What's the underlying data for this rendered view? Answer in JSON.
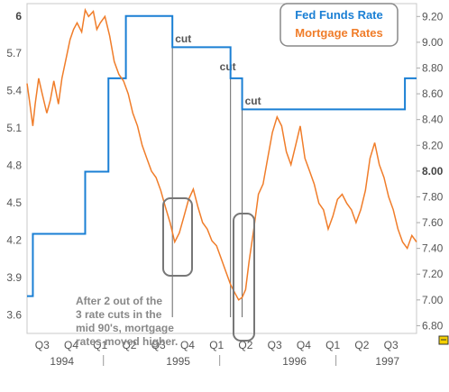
{
  "chart_data": {
    "type": "line",
    "legend": {
      "placement": "top-right",
      "entries": [
        {
          "label": "Fed Funds Rate",
          "color": "#1a7fd4"
        },
        {
          "label": "Mortgage Rates",
          "color": "#f07d2a"
        }
      ]
    },
    "x_axis": {
      "quarter_labels": [
        "Q3",
        "Q4",
        "Q1",
        "Q2",
        "Q3",
        "Q4",
        "Q1",
        "Q2",
        "Q3",
        "Q4",
        "Q1",
        "Q2",
        "Q3"
      ],
      "year_labels": [
        "1994",
        "1995",
        "1996",
        "1997"
      ]
    },
    "left_axis": {
      "ticks": [
        "6",
        "5.7",
        "5.4",
        "5.1",
        "4.8",
        "4.5",
        "4.2",
        "3.9",
        "3.6"
      ],
      "bold_ticks": [
        "6"
      ],
      "range": [
        3.45,
        6.1
      ]
    },
    "right_axis": {
      "ticks": [
        "9.20",
        "9.00",
        "8.80",
        "8.60",
        "8.40",
        "8.20",
        "8.00",
        "7.80",
        "7.60",
        "7.40",
        "7.20",
        "7.00",
        "6.80"
      ],
      "bold_ticks": [
        "8.00"
      ],
      "range": [
        6.74,
        9.3
      ]
    },
    "series": [
      {
        "name": "Fed Funds Rate",
        "axis": "left",
        "x": [
          1994.25,
          1994.3,
          1994.5,
          1994.75,
          1994.95,
          1995.1,
          1995.5,
          1996.0,
          1996.1,
          1997.2,
          1997.5
        ],
        "values": [
          3.75,
          4.25,
          4.25,
          4.75,
          5.5,
          6.0,
          5.75,
          5.5,
          5.25,
          5.25,
          5.5
        ]
      },
      {
        "name": "Mortgage Rates",
        "axis": "right",
        "x": [
          1994.25,
          1994.27,
          1994.3,
          1994.32,
          1994.35,
          1994.38,
          1994.42,
          1994.45,
          1994.48,
          1994.52,
          1994.55,
          1994.58,
          1994.62,
          1994.65,
          1994.68,
          1994.72,
          1994.75,
          1994.78,
          1994.82,
          1994.85,
          1994.88,
          1994.92,
          1994.96,
          1995.0,
          1995.04,
          1995.08,
          1995.12,
          1995.16,
          1995.2,
          1995.24,
          1995.28,
          1995.32,
          1995.36,
          1995.4,
          1995.44,
          1995.48,
          1995.52,
          1995.56,
          1995.6,
          1995.64,
          1995.68,
          1995.72,
          1995.76,
          1995.8,
          1995.84,
          1995.88,
          1995.92,
          1995.96,
          1996.0,
          1996.04,
          1996.07,
          1996.1,
          1996.13,
          1996.16,
          1996.2,
          1996.24,
          1996.28,
          1996.32,
          1996.36,
          1996.4,
          1996.44,
          1996.48,
          1996.52,
          1996.56,
          1996.6,
          1996.64,
          1996.68,
          1996.72,
          1996.76,
          1996.8,
          1996.84,
          1996.88,
          1996.92,
          1996.96,
          1997.0,
          1997.04,
          1997.08,
          1997.12,
          1997.16,
          1997.2,
          1997.24,
          1997.28,
          1997.32,
          1997.36,
          1997.4,
          1997.44,
          1997.48,
          1997.52,
          1997.56,
          1997.6
        ],
        "values": [
          8.68,
          8.55,
          8.35,
          8.52,
          8.72,
          8.6,
          8.45,
          8.55,
          8.7,
          8.52,
          8.72,
          8.85,
          9.02,
          9.1,
          9.15,
          9.08,
          9.25,
          9.2,
          9.24,
          9.1,
          9.15,
          9.2,
          9.05,
          8.85,
          8.75,
          8.7,
          8.6,
          8.45,
          8.35,
          8.2,
          8.1,
          8.0,
          7.95,
          7.85,
          7.72,
          7.6,
          7.45,
          7.52,
          7.65,
          7.78,
          7.86,
          7.72,
          7.6,
          7.55,
          7.46,
          7.42,
          7.32,
          7.22,
          7.12,
          7.05,
          7.0,
          7.02,
          7.08,
          7.3,
          7.55,
          7.82,
          7.9,
          8.1,
          8.3,
          8.42,
          8.35,
          8.15,
          8.05,
          8.2,
          8.35,
          8.1,
          8.0,
          7.9,
          7.75,
          7.7,
          7.55,
          7.65,
          7.78,
          7.82,
          7.75,
          7.7,
          7.6,
          7.7,
          7.85,
          8.1,
          8.22,
          8.05,
          7.95,
          7.8,
          7.7,
          7.55,
          7.45,
          7.4,
          7.5,
          7.45
        ]
      }
    ],
    "annotations": {
      "cuts": [
        {
          "label": "cut",
          "x": 1995.5
        },
        {
          "label": "cut",
          "x": 1996.0
        },
        {
          "label": "cut",
          "x": 1996.1
        }
      ],
      "note": [
        "After 2 out of the",
        "3 rate cuts in the",
        "mid 90's, mortgage",
        "rates moved higher."
      ]
    }
  }
}
